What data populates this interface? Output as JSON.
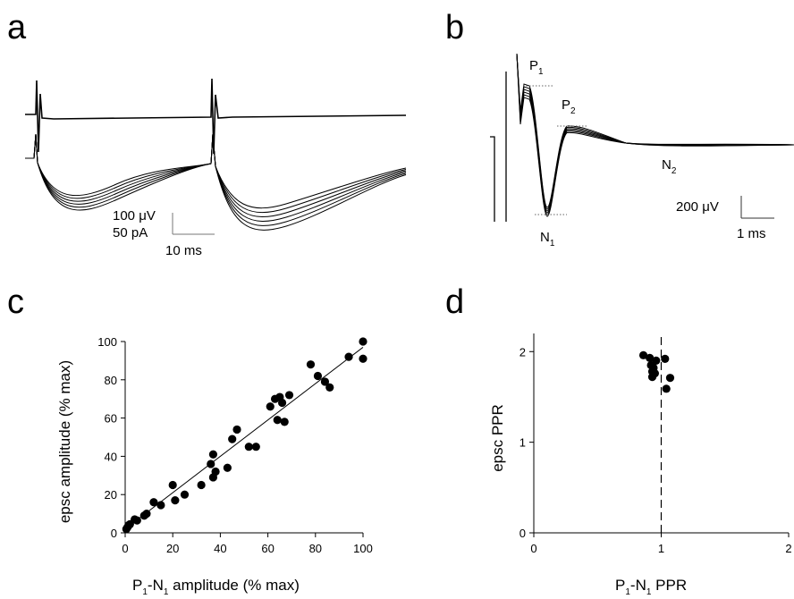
{
  "panels": {
    "a": {
      "letter": "a",
      "scale_bar": {
        "v1": "100 μV",
        "v2": "50 pA",
        "t": "10 ms"
      }
    },
    "b": {
      "letter": "b",
      "labels": {
        "P1": "P",
        "P1_sub": "1",
        "P2": "P",
        "P2_sub": "2",
        "N1": "N",
        "N1_sub": "1",
        "N2": "N",
        "N2_sub": "2"
      },
      "scale_bar": {
        "v": "200 μV",
        "t": "1 ms"
      }
    },
    "c": {
      "letter": "c",
      "ylabel": "epsc amplitude (% max)",
      "xlabel_main": "P",
      "xlabel_sub1": "1",
      "xlabel_mid": "-N",
      "xlabel_sub2": "1",
      "xlabel_tail": " amplitude (% max)"
    },
    "d": {
      "letter": "d",
      "ylabel": "epsc PPR",
      "xlabel_main": "P",
      "xlabel_sub1": "1",
      "xlabel_mid": "-N",
      "xlabel_sub2": "1",
      "xlabel_tail": " PPR"
    }
  },
  "chart_data": [
    {
      "panel": "c",
      "type": "scatter",
      "xlabel": "P1-N1 amplitude (% max)",
      "ylabel": "epsc amplitude (% max)",
      "xlim": [
        0,
        100
      ],
      "ylim": [
        0,
        100
      ],
      "xticks": [
        0,
        20,
        40,
        60,
        80,
        100
      ],
      "yticks": [
        0,
        20,
        40,
        60,
        80,
        100
      ],
      "regression_line": {
        "x": [
          0,
          100
        ],
        "y": [
          2,
          97
        ]
      },
      "points": [
        [
          0.5,
          2
        ],
        [
          1,
          3
        ],
        [
          1.5,
          4
        ],
        [
          2,
          4.5
        ],
        [
          4,
          7
        ],
        [
          5,
          6.5
        ],
        [
          8,
          9
        ],
        [
          9,
          10
        ],
        [
          12,
          16
        ],
        [
          15,
          14.5
        ],
        [
          20,
          25
        ],
        [
          21,
          17
        ],
        [
          25,
          20
        ],
        [
          32,
          25
        ],
        [
          36,
          36
        ],
        [
          37,
          41
        ],
        [
          37,
          29
        ],
        [
          38,
          32
        ],
        [
          43,
          34
        ],
        [
          45,
          49
        ],
        [
          47,
          54
        ],
        [
          52,
          45
        ],
        [
          55,
          45
        ],
        [
          61,
          66
        ],
        [
          63,
          70
        ],
        [
          64,
          59
        ],
        [
          65,
          71
        ],
        [
          66,
          68
        ],
        [
          67,
          58
        ],
        [
          69,
          72
        ],
        [
          78,
          88
        ],
        [
          81,
          82
        ],
        [
          84,
          79
        ],
        [
          86,
          76
        ],
        [
          94,
          92
        ],
        [
          100,
          100
        ],
        [
          100,
          91
        ]
      ],
      "grid": false
    },
    {
      "panel": "d",
      "type": "scatter",
      "xlabel": "P1-N1 PPR",
      "ylabel": "epsc PPR",
      "xlim": [
        0,
        2
      ],
      "ylim": [
        0,
        2.2
      ],
      "xticks": [
        0,
        1,
        2
      ],
      "yticks": [
        0,
        1,
        2
      ],
      "reference_line": {
        "x": 1,
        "style": "dashed"
      },
      "points": [
        [
          0.86,
          1.96
        ],
        [
          0.91,
          1.93
        ],
        [
          0.92,
          1.85
        ],
        [
          0.93,
          1.78
        ],
        [
          0.94,
          1.82
        ],
        [
          0.95,
          1.76
        ],
        [
          0.93,
          1.72
        ],
        [
          0.96,
          1.9
        ],
        [
          1.03,
          1.92
        ],
        [
          1.07,
          1.71
        ],
        [
          1.04,
          1.59
        ]
      ],
      "grid": false
    }
  ]
}
